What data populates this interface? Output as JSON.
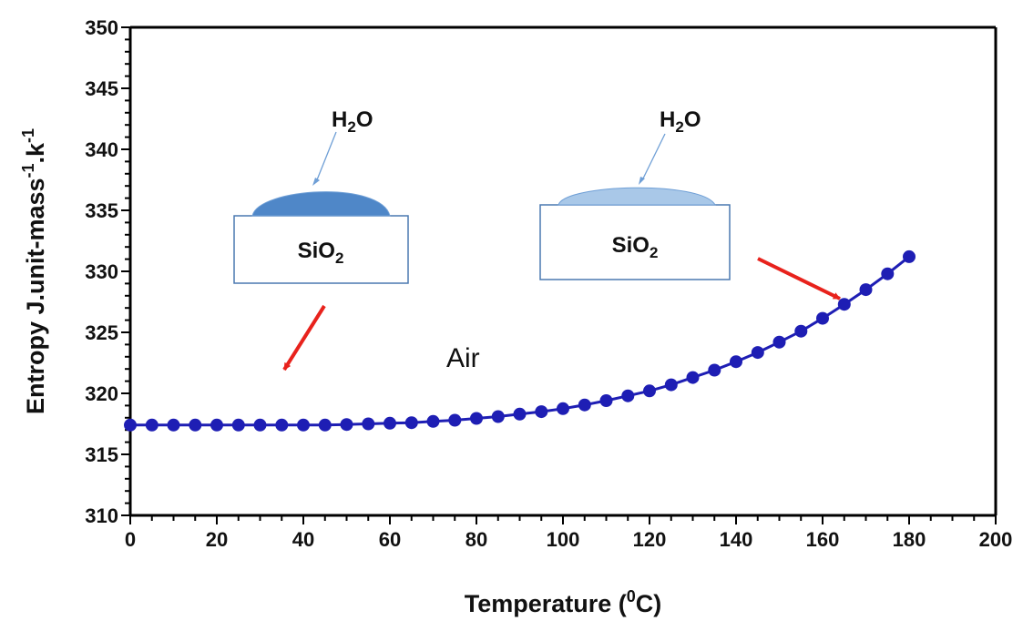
{
  "chart_data": {
    "type": "line",
    "xlabel": {
      "text": "Temperature (",
      "sup": "0",
      "after": "C)"
    },
    "ylabel": {
      "text": "Entropy J.unit-mass",
      "sup1": "-1",
      "mid": ".k",
      "sup2": "-1"
    },
    "xlim": [
      0,
      200
    ],
    "ylim": [
      310,
      350
    ],
    "xticks": [
      0,
      20,
      40,
      60,
      80,
      100,
      120,
      140,
      160,
      180,
      200
    ],
    "yticks": [
      310,
      315,
      320,
      325,
      330,
      335,
      340,
      345,
      350
    ],
    "grid": false,
    "legend": "none",
    "series": [
      {
        "color": "#1e1eb4",
        "marker": "circle",
        "x": [
          0,
          5,
          10,
          15,
          20,
          25,
          30,
          35,
          40,
          45,
          50,
          55,
          60,
          65,
          70,
          75,
          80,
          85,
          90,
          95,
          100,
          105,
          110,
          115,
          120,
          125,
          130,
          135,
          140,
          145,
          150,
          155,
          160,
          165,
          170,
          175,
          180
        ],
        "y": [
          317.4,
          317.4,
          317.4,
          317.4,
          317.4,
          317.4,
          317.4,
          317.4,
          317.4,
          317.4,
          317.45,
          317.5,
          317.55,
          317.6,
          317.7,
          317.8,
          317.95,
          318.1,
          318.3,
          318.5,
          318.75,
          319.05,
          319.4,
          319.8,
          320.2,
          320.7,
          321.3,
          321.9,
          322.6,
          323.35,
          324.2,
          325.1,
          326.15,
          327.3,
          328.5,
          329.8,
          331.2
        ]
      }
    ],
    "annotations": [
      {
        "text": "Air"
      }
    ]
  },
  "insets": {
    "left": {
      "water": "H",
      "water_sub": "2",
      "water_tail": "O",
      "substrate": "SiO",
      "substrate_sub": "2"
    },
    "right": {
      "water": "H",
      "water_sub": "2",
      "water_tail": "O",
      "substrate": "SiO",
      "substrate_sub": "2"
    }
  },
  "colors": {
    "series": "#1e1eb4",
    "arrow": "#e8221c",
    "droplet_left": "#4f87c8",
    "droplet_right": "#a9c8e8",
    "droplet_edge": "#6f9fd6",
    "pointer": "#6f9fd6",
    "substrate_edge": "#4a78b0"
  }
}
